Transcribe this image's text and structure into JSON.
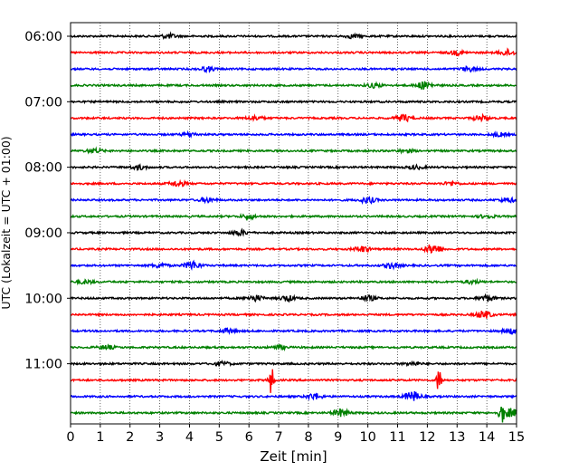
{
  "chart_data": {
    "type": "line",
    "title": "",
    "xlabel": "Zeit  [min]",
    "ylabel": "UTC (Lokalzeit = UTC + 01:00)",
    "xlim": [
      0,
      15
    ],
    "x_ticks": [
      "0",
      "1",
      "2",
      "3",
      "4",
      "5",
      "6",
      "7",
      "8",
      "9",
      "10",
      "11",
      "12",
      "13",
      "14",
      "15"
    ],
    "y_tick_labels": [
      "06:00",
      "07:00",
      "08:00",
      "09:00",
      "10:00",
      "11:00"
    ],
    "rows_per_hour": 4,
    "row_colors": [
      "#000000",
      "#ff0000",
      "#0000ff",
      "#008000"
    ],
    "grid": "vertical dotted at each minute",
    "series": [
      {
        "start": "06:00",
        "events": [
          [
            3.3,
            0.25
          ],
          [
            9.5,
            0.2
          ]
        ]
      },
      {
        "start": "06:15",
        "events": [
          [
            13.0,
            0.25
          ],
          [
            14.7,
            0.35
          ]
        ]
      },
      {
        "start": "06:30",
        "events": [
          [
            4.6,
            0.25
          ],
          [
            13.4,
            0.25
          ]
        ]
      },
      {
        "start": "06:45",
        "events": [
          [
            10.2,
            0.25
          ],
          [
            11.9,
            0.45
          ]
        ]
      },
      {
        "start": "07:00",
        "events": []
      },
      {
        "start": "07:15",
        "events": [
          [
            6.2,
            0.25
          ],
          [
            11.2,
            0.4
          ],
          [
            13.8,
            0.3
          ]
        ]
      },
      {
        "start": "07:30",
        "events": [
          [
            4.0,
            0.2
          ],
          [
            14.4,
            0.2
          ]
        ]
      },
      {
        "start": "07:45",
        "events": [
          [
            0.8,
            0.25
          ],
          [
            11.3,
            0.2
          ]
        ]
      },
      {
        "start": "08:00",
        "events": [
          [
            2.3,
            0.25
          ],
          [
            11.6,
            0.2
          ]
        ]
      },
      {
        "start": "08:15",
        "events": [
          [
            3.6,
            0.35
          ],
          [
            12.8,
            0.2
          ]
        ]
      },
      {
        "start": "08:30",
        "events": [
          [
            10.0,
            0.35
          ],
          [
            4.6,
            0.25
          ],
          [
            14.7,
            0.25
          ]
        ]
      },
      {
        "start": "08:45",
        "events": [
          [
            6.0,
            0.25
          ],
          [
            14.0,
            0.2
          ]
        ]
      },
      {
        "start": "09:00",
        "events": [
          [
            5.7,
            0.3
          ]
        ]
      },
      {
        "start": "09:15",
        "events": [
          [
            9.8,
            0.35
          ],
          [
            12.2,
            0.6
          ]
        ]
      },
      {
        "start": "09:30",
        "events": [
          [
            4.1,
            0.5
          ],
          [
            3.0,
            0.25
          ],
          [
            10.8,
            0.3
          ]
        ]
      },
      {
        "start": "09:45",
        "events": [
          [
            0.5,
            0.2
          ],
          [
            13.5,
            0.2
          ]
        ]
      },
      {
        "start": "10:00",
        "events": [
          [
            6.2,
            0.35
          ],
          [
            7.3,
            0.3
          ],
          [
            10.0,
            0.3
          ],
          [
            14.0,
            0.35
          ]
        ]
      },
      {
        "start": "10:15",
        "events": [
          [
            13.9,
            0.45
          ]
        ]
      },
      {
        "start": "10:30",
        "events": [
          [
            5.3,
            0.25
          ],
          [
            14.8,
            0.3
          ]
        ]
      },
      {
        "start": "10:45",
        "events": [
          [
            1.2,
            0.25
          ],
          [
            7.0,
            0.2
          ]
        ]
      },
      {
        "start": "11:00",
        "events": [
          [
            5.1,
            0.25
          ],
          [
            11.5,
            0.2
          ]
        ]
      },
      {
        "start": "11:15",
        "events": [
          [
            6.75,
            1.6
          ],
          [
            12.4,
            1.6
          ]
        ]
      },
      {
        "start": "11:30",
        "events": [
          [
            8.2,
            0.35
          ],
          [
            11.5,
            0.6
          ]
        ]
      },
      {
        "start": "11:45",
        "events": [
          [
            9.1,
            0.45
          ],
          [
            14.5,
            1.2
          ],
          [
            14.8,
            0.5
          ]
        ]
      }
    ]
  }
}
